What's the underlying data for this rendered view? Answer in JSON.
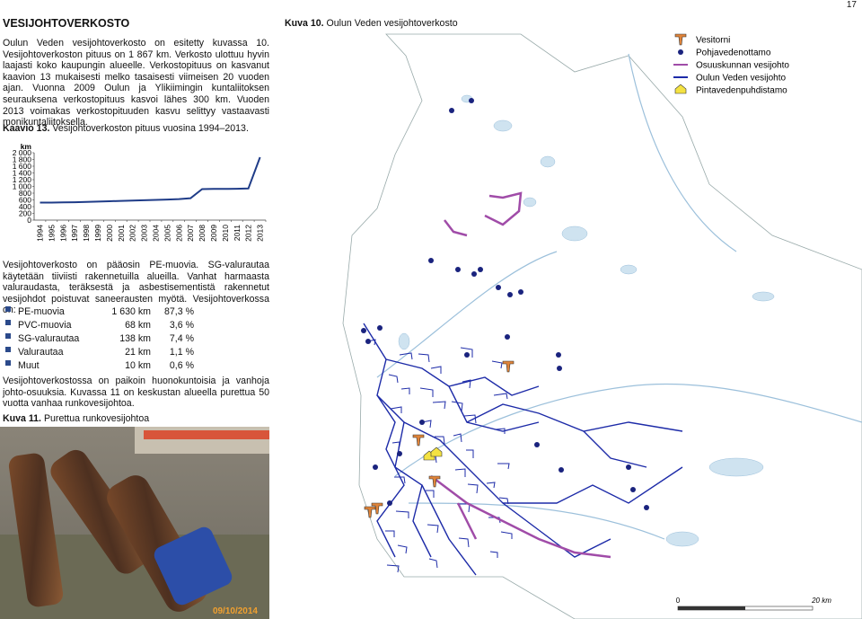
{
  "page_number": "17",
  "section_title": "VESIJOHTOVERKOSTO",
  "intro": "Oulun Veden vesijohtoverkosto on esitetty kuvassa 10. Vesijohtoverkoston pituus on 1 867 km. Verkosto ulottuu hyvin laajasti koko kaupungin alueelle. Verkostopituus on kasvanut kaavion 13 mukaisesti melko tasaisesti viimeisen 20 vuoden ajan. Vuonna 2009 Oulun ja Ylikiimingin kuntaliitoksen seurauksena verkostopituus kasvoi lähes 300 km. Vuoden 2013 voimakas verkostopituuden kasvu selittyy vastaavasti monikuntaliitoksella.",
  "chart_data": {
    "type": "line",
    "title_label": "Kaavio 13.",
    "title": "Vesijohtoverkoston pituus vuosina 1994–2013.",
    "y_label": "km",
    "categories": [
      "1994",
      "1995",
      "1996",
      "1997",
      "1998",
      "1999",
      "2000",
      "2001",
      "2002",
      "2003",
      "2004",
      "2005",
      "2006",
      "2007",
      "2008",
      "2009",
      "2010",
      "2011",
      "2012",
      "2013"
    ],
    "values": [
      520,
      520,
      525,
      530,
      540,
      550,
      560,
      570,
      580,
      590,
      600,
      610,
      625,
      650,
      920,
      925,
      925,
      930,
      940,
      1867
    ],
    "color": "#1f3c88",
    "ylim": [
      0,
      2000
    ],
    "yticks": [
      0,
      200,
      400,
      600,
      800,
      {
        "value": 1000,
        "label": "1 000"
      },
      {
        "value": 1200,
        "label": "1 200"
      },
      {
        "value": 1400,
        "label": "1 400"
      },
      {
        "value": 1600,
        "label": "1 600"
      },
      {
        "value": 1800,
        "label": "1 800"
      },
      {
        "value": 2000,
        "label": "2 000"
      }
    ],
    "grid": false
  },
  "materials_text": "Vesijohtoverkosto on pääosin PE-muovia. SG-valurautaa käytetään tiiviisti rakennetuilla alueilla. Vanhat harmaasta valuraudasta, teräksestä ja asbestisementistä rakennetut vesijohdot poistuvat saneerausten myötä. Vesijohtoverkossa on:",
  "materials": [
    [
      "PE-muovia",
      "1 630 km",
      "87,3 %"
    ],
    [
      "PVC-muovia",
      "68 km",
      "3,6 %"
    ],
    [
      "SG-valurautaa",
      "138 km",
      "7,4 %"
    ],
    [
      "Valurautaa",
      "21 km",
      "1,1 %"
    ],
    [
      "Muut",
      "10 km",
      "0,6 %"
    ]
  ],
  "condition_text": "Vesijohtoverkostossa on paikoin huonokuntoisia ja vanhoja johto-osuuksia. Kuvassa 11 on keskustan alueella purettua 50 vuotta vanhaa runkovesijohtoa.",
  "photo": {
    "caption_label": "Kuva 11.",
    "caption": "Purettua runkovesijohtoa",
    "date_stamp": "09/10/2014"
  },
  "map": {
    "caption_label": "Kuva 10.",
    "caption": "Oulun Veden vesijohtoverkosto",
    "legend": [
      "Vesitorni",
      "Pohjavedenottamo",
      "Osuuskunnan vesijohto",
      "Oulun Veden vesijohto",
      "Pintavedenpuhdistamo"
    ],
    "scale_labels": [
      "0",
      "20 km"
    ]
  }
}
